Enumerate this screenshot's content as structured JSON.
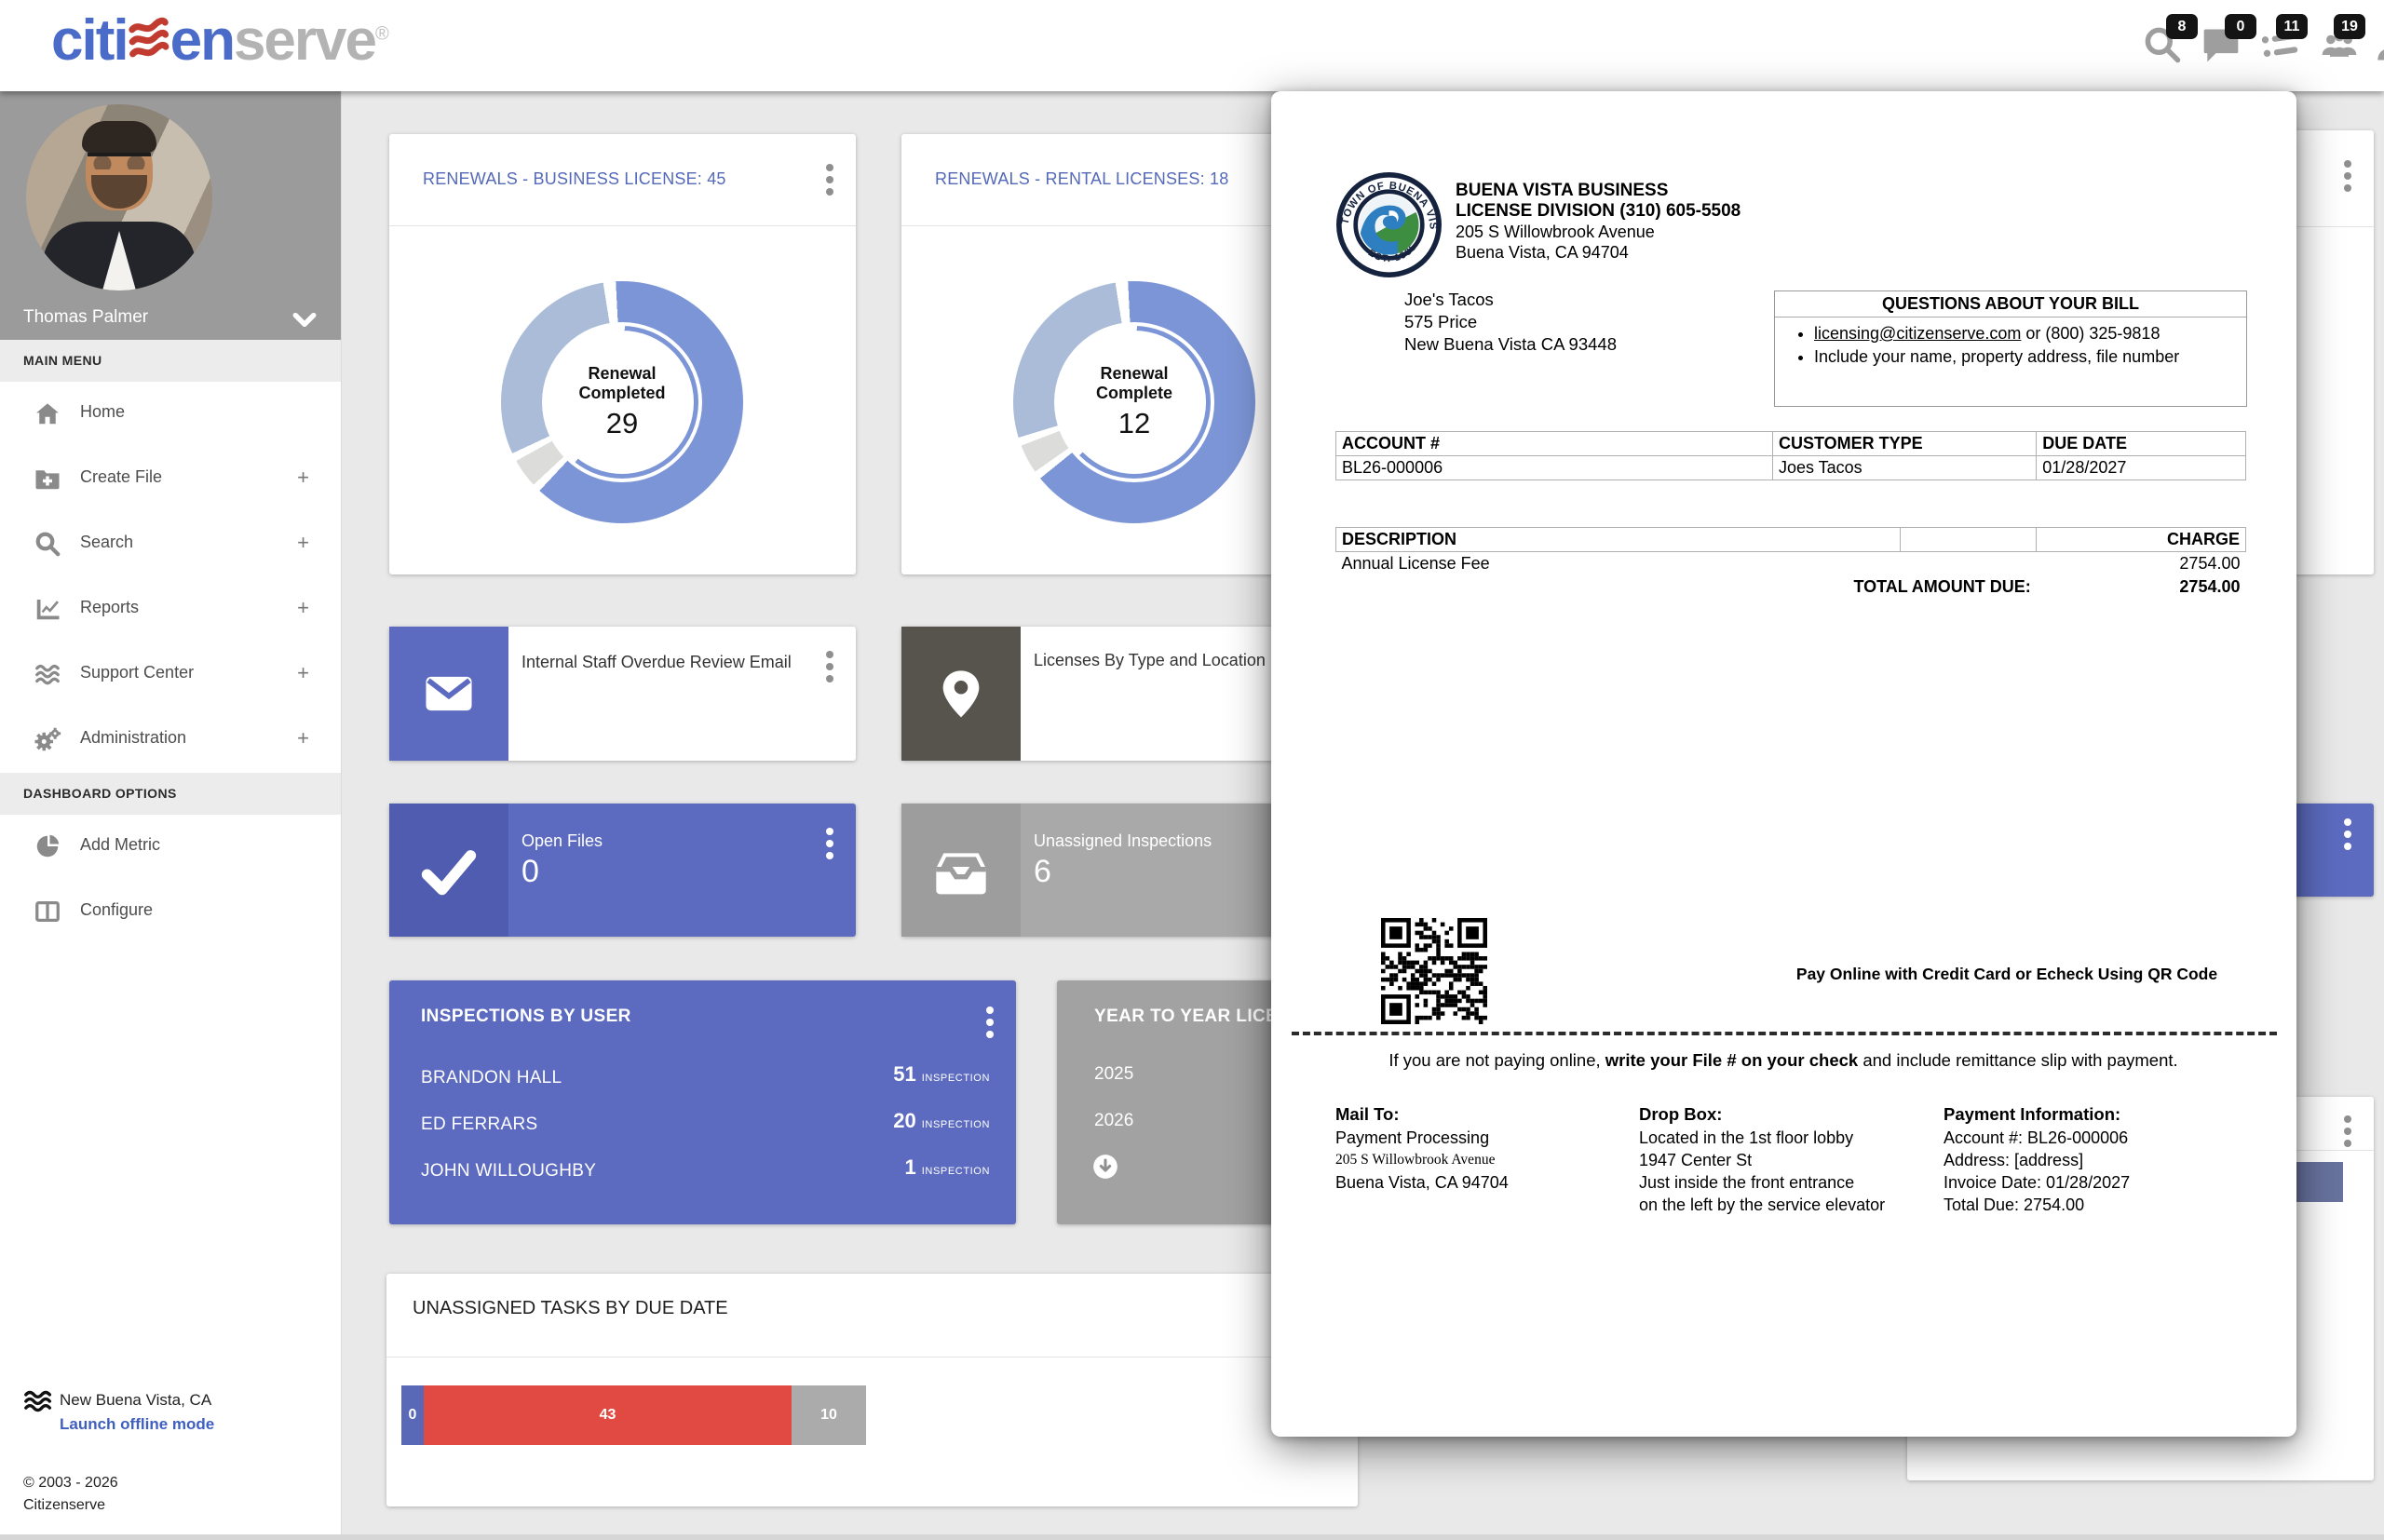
{
  "header": {
    "logo": {
      "pre": "citi",
      "mid": "en",
      "tail": "serve",
      "reg": "®"
    },
    "badges": {
      "search": "8",
      "chat": "0",
      "tasks": "11",
      "people": "19"
    }
  },
  "sidebar": {
    "user_name": "Thomas Palmer",
    "main_menu_label": "MAIN MENU",
    "dashboard_options_label": "DASHBOARD OPTIONS",
    "items": [
      {
        "label": "Home",
        "expand": ""
      },
      {
        "label": "Create File",
        "expand": "+"
      },
      {
        "label": "Search",
        "expand": "+"
      },
      {
        "label": "Reports",
        "expand": "+"
      },
      {
        "label": "Support Center",
        "expand": "+"
      },
      {
        "label": "Administration",
        "expand": "+"
      }
    ],
    "options": [
      {
        "label": "Add Metric"
      },
      {
        "label": "Configure"
      }
    ],
    "footer": {
      "city": "New Buena Vista, CA",
      "offline_link": "Launch offline mode",
      "copyright": "© 2003 - 2026",
      "company": "Citizenserve"
    }
  },
  "cards": {
    "business": {
      "title": "RENEWALS - BUSINESS LICENSE: 45",
      "center_label": "Renewal Completed",
      "center_value": "29"
    },
    "rental": {
      "title": "RENEWALS - RENTAL LICENSES: 18",
      "center_label": "Renewal Complete",
      "center_value": "12"
    },
    "email": {
      "title": "Internal Staff Overdue Review Email"
    },
    "licenses": {
      "title": "Licenses By Type and Location"
    },
    "open_files": {
      "label": "Open Files",
      "value": "0"
    },
    "unassigned_inspections": {
      "label": "Unassigned Inspections",
      "value": "6"
    },
    "inspections_by_user": {
      "title": "INSPECTIONS BY USER",
      "rows": [
        {
          "name": "BRANDON HALL",
          "count": "51",
          "unit": "INSPECTION"
        },
        {
          "name": "ED FERRARS",
          "count": "20",
          "unit": "INSPECTION"
        },
        {
          "name": "JOHN WILLOUGHBY",
          "count": "1",
          "unit": "INSPECTION"
        }
      ]
    },
    "year_to_year": {
      "title": "YEAR TO YEAR LICENSES",
      "years": [
        "2025",
        "2026"
      ]
    },
    "tasks": {
      "title": "UNASSIGNED TASKS BY DUE DATE",
      "segments": [
        {
          "value": "0"
        },
        {
          "value": "43"
        },
        {
          "value": "10"
        }
      ]
    }
  },
  "invoice": {
    "seal": {
      "top": "TOWN OF BUENA VISTA",
      "bottom": "EST. 1985"
    },
    "division": {
      "line1": "BUENA VISTA BUSINESS",
      "line2": "LICENSE DIVISION (310) 605-5508",
      "line3": "205 S Willowbrook Avenue",
      "line4": "Buena Vista, CA 94704"
    },
    "recipient": {
      "line1": "Joe's Tacos",
      "line2": "575 Price",
      "line3": "New Buena Vista CA 93448"
    },
    "questions": {
      "title": "QUESTIONS ABOUT YOUR BILL",
      "bullet1_link": "licensing@citizenserve.com",
      "bullet1_rest": " or (800) 325-9818",
      "bullet2": "Include your name, property address, file number"
    },
    "account_table": {
      "headers": [
        "ACCOUNT #",
        "CUSTOMER TYPE",
        "DUE DATE"
      ],
      "values": [
        "BL26-000006",
        "Joes Tacos",
        "01/28/2027"
      ]
    },
    "charges": {
      "desc_header": "DESCRIPTION",
      "charge_header": "CHARGE",
      "item": "Annual License Fee",
      "amount": "2754.00",
      "total_label": "TOTAL AMOUNT DUE:",
      "total": "2754.00"
    },
    "qr_caption": "Pay Online with Credit Card or Echeck Using QR Code",
    "note_pre": "If you are not paying online, ",
    "note_bold": "write your File # on your check",
    "note_post": " and include remittance slip with payment.",
    "mail_to": {
      "title": "Mail To:",
      "line1": "Payment Processing",
      "line2": "205 S Willowbrook Avenue",
      "line3": "Buena Vista, CA 94704"
    },
    "drop_box": {
      "title": "Drop Box:",
      "line1": "Located in the 1st floor lobby",
      "line2": "1947 Center St",
      "line3": "Just inside the front entrance",
      "line4": "on the left by the service elevator"
    },
    "payment_info": {
      "title": "Payment Information:",
      "line1": "Account #: BL26-000006",
      "line2": "Address: [address]",
      "line3": "Invoice Date: 01/28/2027",
      "line4": "Total Due: 2754.00"
    }
  },
  "chart_data": [
    {
      "type": "pie",
      "title": "RENEWALS - BUSINESS LICENSE: 45",
      "center_label": "Renewal Completed",
      "center_value": 29,
      "total": 45,
      "slices": [
        {
          "label": "Renewal Completed",
          "value": 29,
          "color": "#7C95D6"
        },
        {
          "label": "segment-2 (est.)",
          "value": 14,
          "color": "#AABCD8"
        },
        {
          "label": "segment-3 (est.)",
          "value": 2,
          "color": "#DCDCDA"
        }
      ],
      "legend_position": "none"
    },
    {
      "type": "pie",
      "title": "RENEWALS - RENTAL LICENSES: 18",
      "center_label": "Renewal Complete",
      "center_value": 12,
      "total": 18,
      "slices": [
        {
          "label": "Renewal Complete",
          "value": 12,
          "color": "#7C95D6"
        },
        {
          "label": "segment-2 (est.)",
          "value": 5,
          "color": "#AABCD8"
        },
        {
          "label": "segment-3 (est.)",
          "value": 1,
          "color": "#DCDCDA"
        }
      ],
      "legend_position": "none"
    },
    {
      "type": "bar",
      "title": "UNASSIGNED TASKS BY DUE DATE",
      "categories": [
        "overdue-blue",
        "overdue-red",
        "upcoming-gray"
      ],
      "values": [
        0,
        43,
        10
      ],
      "colors": [
        "#5A68B8",
        "#E04A42",
        "#ABABAB"
      ],
      "stacked": true
    },
    {
      "type": "table",
      "title": "INSPECTIONS BY USER",
      "rows": [
        [
          "BRANDON HALL",
          51
        ],
        [
          "ED FERRARS",
          20
        ],
        [
          "JOHN WILLOUGHBY",
          1
        ]
      ]
    }
  ]
}
